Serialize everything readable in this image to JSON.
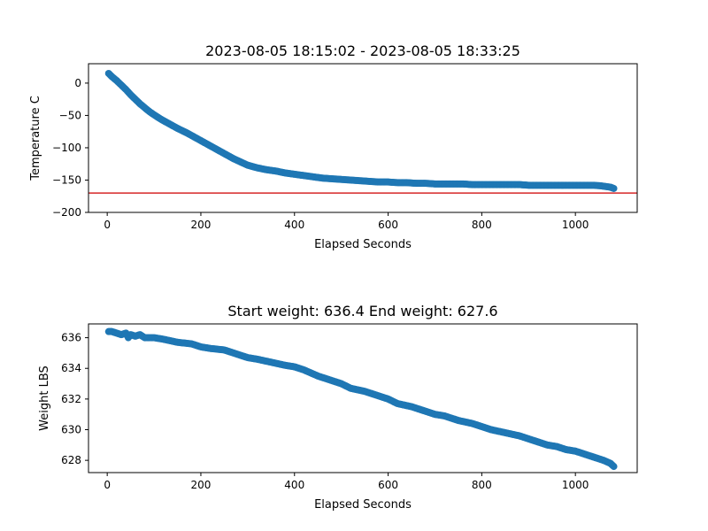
{
  "chart_data": [
    {
      "type": "scatter",
      "title": "2023-08-05 18:15:02 - 2023-08-05 18:33:25",
      "xlabel": "Elapsed Seconds",
      "ylabel": "Temperature C",
      "xlim": [
        -40,
        1132
      ],
      "ylim": [
        -200,
        30
      ],
      "xticks": [
        0,
        200,
        400,
        600,
        800,
        1000
      ],
      "yticks": [
        -200,
        -150,
        -100,
        -50,
        0
      ],
      "grid": false,
      "reference_line": {
        "y": -170,
        "color": "#d62728"
      },
      "series": [
        {
          "color": "#1f77b4",
          "x": [
            3,
            10,
            20,
            30,
            40,
            50,
            60,
            70,
            80,
            90,
            100,
            115,
            130,
            150,
            170,
            190,
            210,
            230,
            250,
            270,
            285,
            300,
            320,
            340,
            360,
            380,
            400,
            420,
            440,
            460,
            480,
            500,
            520,
            540,
            560,
            580,
            600,
            620,
            640,
            660,
            680,
            700,
            720,
            740,
            760,
            780,
            800,
            820,
            840,
            860,
            880,
            900,
            920,
            940,
            960,
            980,
            1000,
            1020,
            1040,
            1055,
            1065,
            1075,
            1082
          ],
          "values": [
            15,
            10,
            4,
            -3,
            -10,
            -18,
            -25,
            -32,
            -38,
            -44,
            -49,
            -56,
            -62,
            -70,
            -77,
            -85,
            -93,
            -101,
            -109,
            -117,
            -122,
            -127,
            -131,
            -134,
            -136,
            -139,
            -141,
            -143,
            -145,
            -147,
            -148,
            -149,
            -150,
            -151,
            -152,
            -153,
            -153,
            -154,
            -154,
            -155,
            -155,
            -156,
            -156,
            -156,
            -156,
            -157,
            -157,
            -157,
            -157,
            -157,
            -157,
            -158,
            -158,
            -158,
            -158,
            -158,
            -158,
            -158,
            -158,
            -159,
            -160,
            -161,
            -163
          ]
        }
      ]
    },
    {
      "type": "scatter",
      "title": "Start weight: 636.4 End weight: 627.6",
      "xlabel": "Elapsed Seconds",
      "ylabel": "Weight LBS",
      "xlim": [
        -40,
        1132
      ],
      "ylim": [
        627.2,
        636.9
      ],
      "xticks": [
        0,
        200,
        400,
        600,
        800,
        1000
      ],
      "yticks": [
        628,
        630,
        632,
        634,
        636
      ],
      "grid": false,
      "series": [
        {
          "color": "#1f77b4",
          "x": [
            3,
            10,
            20,
            30,
            40,
            45,
            50,
            60,
            70,
            80,
            100,
            120,
            150,
            180,
            200,
            220,
            250,
            270,
            300,
            320,
            350,
            380,
            400,
            420,
            450,
            480,
            500,
            520,
            550,
            580,
            600,
            620,
            650,
            680,
            700,
            720,
            750,
            780,
            800,
            820,
            850,
            880,
            900,
            920,
            940,
            960,
            980,
            1000,
            1020,
            1040,
            1060,
            1075,
            1082
          ],
          "values": [
            636.4,
            636.4,
            636.3,
            636.2,
            636.3,
            636.0,
            636.2,
            636.1,
            636.2,
            636.0,
            636.0,
            635.9,
            635.7,
            635.6,
            635.4,
            635.3,
            635.2,
            635.0,
            634.7,
            634.6,
            634.4,
            634.2,
            634.1,
            633.9,
            633.5,
            633.2,
            633.0,
            632.7,
            632.5,
            632.2,
            632.0,
            631.7,
            631.5,
            631.2,
            631.0,
            630.9,
            630.6,
            630.4,
            630.2,
            630.0,
            629.8,
            629.6,
            629.4,
            629.2,
            629.0,
            628.9,
            628.7,
            628.6,
            628.4,
            628.2,
            628.0,
            627.8,
            627.6
          ]
        }
      ]
    }
  ]
}
